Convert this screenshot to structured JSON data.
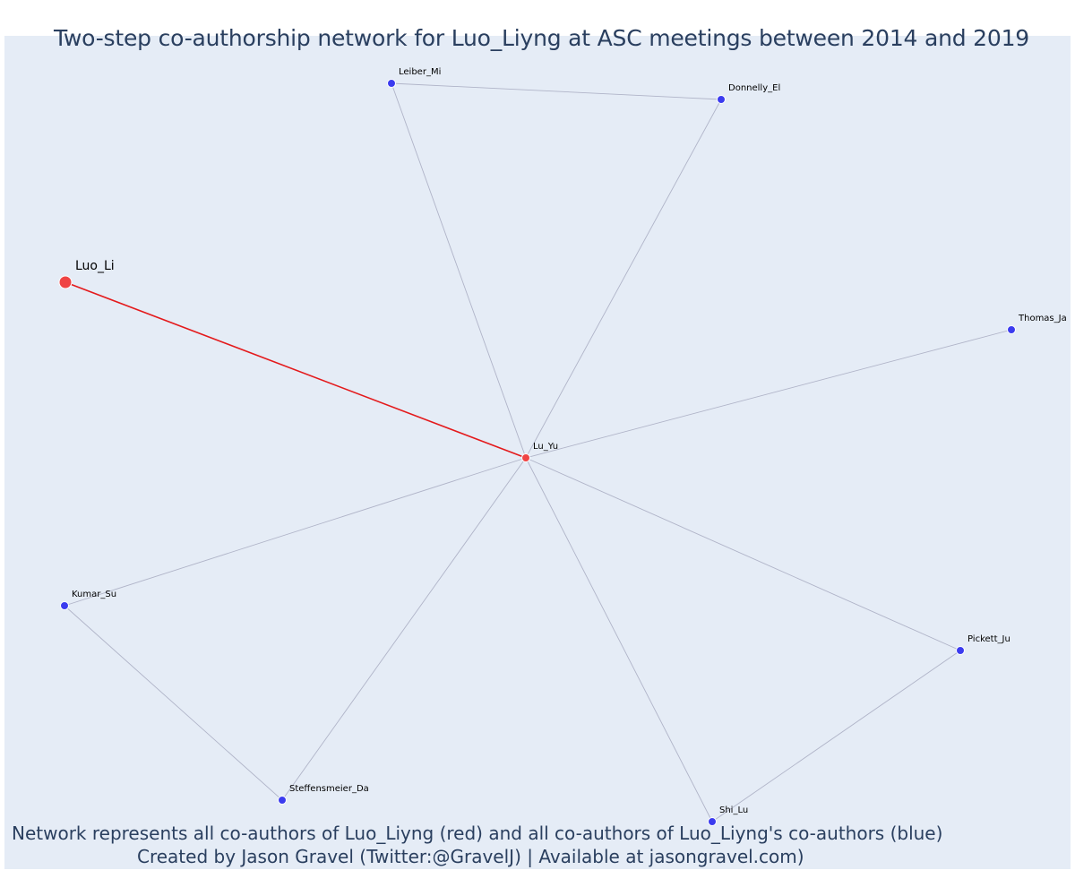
{
  "title": "Two-step co-authorship network for Luo_Liyng at ASC meetings between 2014 and 2019",
  "caption": {
    "line1": "Network represents all co-authors of Luo_Liyng (red) and all co-authors of Luo_Liyng's co-authors (blue)",
    "line2": "Created by Jason Gravel (Twitter:@GravelJ) | Available at jasongravel.com)"
  },
  "colors": {
    "background": "#e5ecf6",
    "ego_node": "#ef4444",
    "coauthor_node": "#ef4444",
    "second_step_node": "#3b3bef",
    "ego_edge": "#e41a1c",
    "edge": "#b0b4c8",
    "text": "#2a3f5f"
  },
  "nodes": [
    {
      "id": "Luo_Li",
      "label": "Luo_Li",
      "role": "ego"
    },
    {
      "id": "Lu_Yu",
      "label": "Lu_Yu",
      "role": "coauthor"
    },
    {
      "id": "Leiber_Mi",
      "label": "Leiber_Mi",
      "role": "second_step"
    },
    {
      "id": "Donnelly_El",
      "label": "Donnelly_El",
      "role": "second_step"
    },
    {
      "id": "Thomas_Ja",
      "label": "Thomas_Ja",
      "role": "second_step"
    },
    {
      "id": "Kumar_Su",
      "label": "Kumar_Su",
      "role": "second_step"
    },
    {
      "id": "Steffensmeier_Da",
      "label": "Steffensmeier_Da",
      "role": "second_step"
    },
    {
      "id": "Shi_Lu",
      "label": "Shi_Lu",
      "role": "second_step"
    },
    {
      "id": "Pickett_Ju",
      "label": "Pickett_Ju",
      "role": "second_step"
    }
  ],
  "edges": [
    {
      "source": "Luo_Li",
      "target": "Lu_Yu",
      "type": "ego"
    },
    {
      "source": "Lu_Yu",
      "target": "Leiber_Mi",
      "type": "second"
    },
    {
      "source": "Lu_Yu",
      "target": "Donnelly_El",
      "type": "second"
    },
    {
      "source": "Lu_Yu",
      "target": "Thomas_Ja",
      "type": "second"
    },
    {
      "source": "Lu_Yu",
      "target": "Kumar_Su",
      "type": "second"
    },
    {
      "source": "Lu_Yu",
      "target": "Steffensmeier_Da",
      "type": "second"
    },
    {
      "source": "Lu_Yu",
      "target": "Shi_Lu",
      "type": "second"
    },
    {
      "source": "Lu_Yu",
      "target": "Pickett_Ju",
      "type": "second"
    },
    {
      "source": "Leiber_Mi",
      "target": "Donnelly_El",
      "type": "second"
    },
    {
      "source": "Kumar_Su",
      "target": "Steffensmeier_Da",
      "type": "second"
    },
    {
      "source": "Shi_Lu",
      "target": "Pickett_Ju",
      "type": "second"
    }
  ]
}
